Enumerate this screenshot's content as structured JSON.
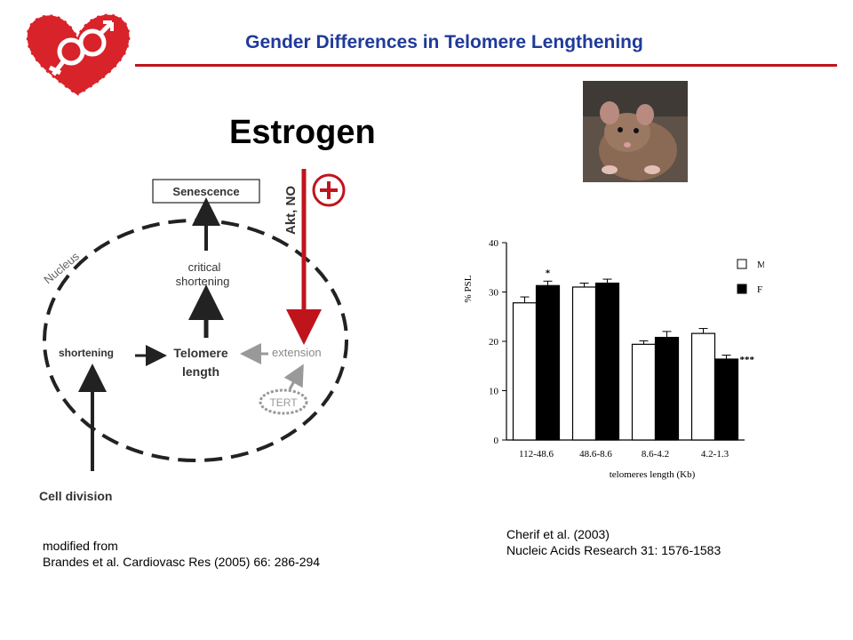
{
  "slide": {
    "title": "Gender Differences in Telomere Lengthening",
    "heading": "Estrogen"
  },
  "colors": {
    "title_blue": "#1f3a9a",
    "accent_red": "#c0141c",
    "grey": "#8a8a8a"
  },
  "diagram": {
    "senescence": "Senescence",
    "akt_no": "Akt, NO",
    "nucleus": "Nucleus",
    "critical_line1": "critical",
    "critical_line2": "shortening",
    "shortening": "shortening",
    "telomere_line1": "Telomere",
    "telomere_line2": "length",
    "extension": "extension",
    "tert": "TERT",
    "cell_division": "Cell division",
    "plus_icon": "plus-icon"
  },
  "chart_data": {
    "type": "bar",
    "categories": [
      "112-48.6",
      "48.6-8.6",
      "8.6-4.2",
      "4.2-1.3"
    ],
    "series": [
      {
        "name": "M",
        "values": [
          27.8,
          31.0,
          19.4,
          21.6
        ],
        "errors": [
          1.2,
          0.8,
          0.7,
          1.0
        ],
        "color": "#ffffff"
      },
      {
        "name": "F",
        "values": [
          31.3,
          31.8,
          20.8,
          16.4
        ],
        "errors": [
          0.9,
          0.8,
          1.2,
          0.8
        ],
        "color": "#000000"
      }
    ],
    "annotations": [
      {
        "category": "112-48.6",
        "series": "F",
        "text": "*"
      },
      {
        "category": "4.2-1.3",
        "series": "F",
        "text": "***"
      }
    ],
    "yticks": [
      0,
      10,
      20,
      30,
      40
    ],
    "ylim": [
      0,
      40
    ],
    "ylabel": "% PSL",
    "xlabel": "telomeres length (Kb)",
    "legend": [
      "M",
      "F"
    ],
    "legend_position": "top-right",
    "grid": false
  },
  "citations": {
    "left_line1": "modified from",
    "left_line2": "Brandes et al. Cardiovasc Res (2005) 66: 286-294",
    "right_line1": "Cherif et al. (2003)",
    "right_line2": "Nucleic Acids Research 31: 1576-1583"
  }
}
